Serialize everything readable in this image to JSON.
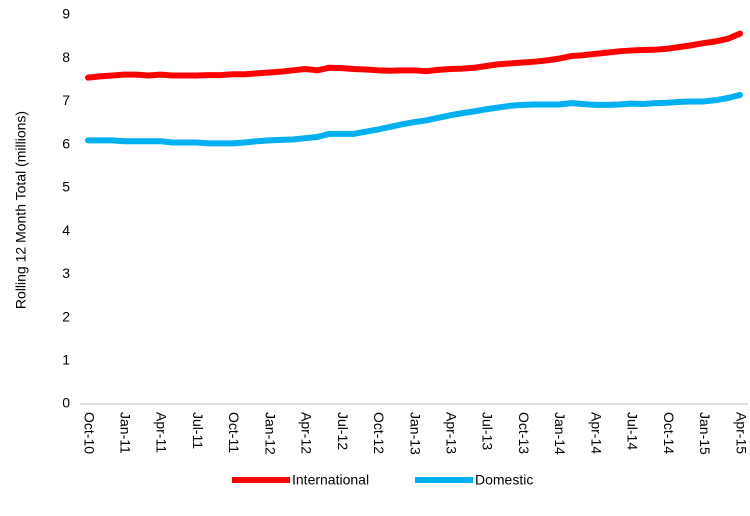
{
  "chart_data": {
    "type": "line",
    "y_label": "Rolling 12 Month Total (millions)",
    "categories": [
      "Oct-10",
      null,
      null,
      "Jan-11",
      null,
      null,
      "Apr-11",
      null,
      null,
      "Jul-11",
      null,
      null,
      "Oct-11",
      null,
      null,
      "Jan-12",
      null,
      null,
      "Apr-12",
      null,
      null,
      "Jul-12",
      null,
      null,
      "Oct-12",
      null,
      null,
      "Jan-13",
      null,
      null,
      "Apr-13",
      null,
      null,
      "Jul-13",
      null,
      null,
      "Oct-13",
      null,
      null,
      "Jan-14",
      null,
      null,
      "Apr-14",
      null,
      null,
      "Jul-14",
      null,
      null,
      "Oct-14",
      null,
      null,
      "Jan-15",
      null,
      null,
      "Apr-15"
    ],
    "series": [
      {
        "name": "International",
        "color": "#ff0000",
        "values": [
          7.55,
          7.58,
          7.6,
          7.62,
          7.62,
          7.6,
          7.62,
          7.6,
          7.6,
          7.6,
          7.61,
          7.61,
          7.63,
          7.63,
          7.65,
          7.67,
          7.69,
          7.72,
          7.75,
          7.72,
          7.78,
          7.77,
          7.75,
          7.74,
          7.72,
          7.71,
          7.72,
          7.72,
          7.7,
          7.73,
          7.75,
          7.76,
          7.78,
          7.82,
          7.86,
          7.88,
          7.9,
          7.92,
          7.95,
          7.99,
          8.05,
          8.07,
          8.1,
          8.13,
          8.16,
          8.18,
          8.19,
          8.2,
          8.22,
          8.26,
          8.3,
          8.35,
          8.39,
          8.45,
          8.57
        ]
      },
      {
        "name": "Domestic",
        "color": "#00b0f0",
        "values": [
          6.1,
          6.1,
          6.1,
          6.08,
          6.08,
          6.08,
          6.08,
          6.05,
          6.05,
          6.05,
          6.03,
          6.03,
          6.03,
          6.05,
          6.08,
          6.1,
          6.11,
          6.12,
          6.15,
          6.18,
          6.25,
          6.25,
          6.25,
          6.3,
          6.35,
          6.41,
          6.47,
          6.52,
          6.56,
          6.62,
          6.68,
          6.73,
          6.77,
          6.82,
          6.86,
          6.9,
          6.92,
          6.93,
          6.93,
          6.93,
          6.96,
          6.94,
          6.92,
          6.92,
          6.93,
          6.95,
          6.94,
          6.96,
          6.97,
          6.99,
          7.0,
          7.0,
          7.03,
          7.08,
          7.15
        ]
      }
    ],
    "ylim": [
      0,
      9
    ],
    "yticks": [
      0,
      1,
      2,
      3,
      4,
      5,
      6,
      7,
      8,
      9
    ],
    "grid": false,
    "legend": "bottom"
  }
}
